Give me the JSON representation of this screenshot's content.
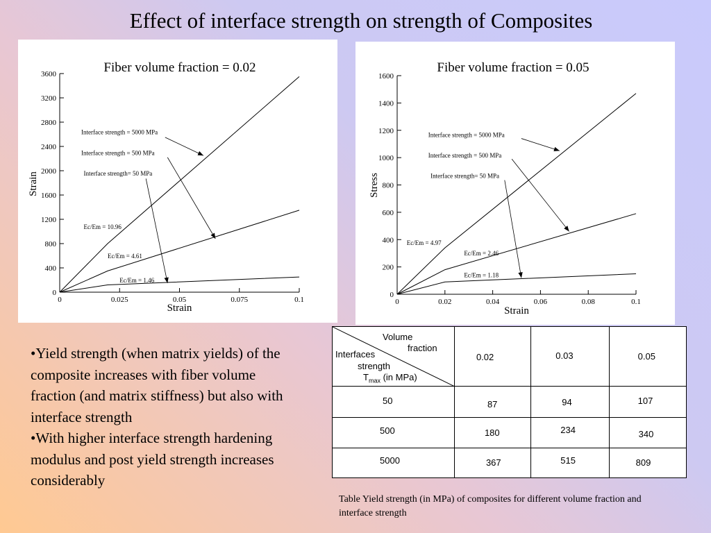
{
  "slide": {
    "title": "Effect of interface strength on strength of Composites"
  },
  "chart_data": [
    {
      "type": "line",
      "title": "Fiber volume fraction = 0.02",
      "xlabel": "Strain",
      "ylabel": "Strain",
      "xlim": [
        0,
        0.1
      ],
      "ylim": [
        0,
        3600
      ],
      "x_ticks": [
        "0",
        "0.025",
        "0.05",
        "0.075",
        "0.1"
      ],
      "y_ticks": [
        "0",
        "400",
        "800",
        "1200",
        "1600",
        "2000",
        "2400",
        "2800",
        "3200",
        "3600"
      ],
      "series": [
        {
          "x": [
            0,
            0.02,
            0.1
          ],
          "y": [
            0,
            800,
            3550
          ]
        },
        {
          "x": [
            0,
            0.02,
            0.1
          ],
          "y": [
            0,
            350,
            1350
          ]
        },
        {
          "x": [
            0,
            0.02,
            0.1
          ],
          "y": [
            0,
            120,
            250
          ]
        }
      ],
      "annotations": [
        {
          "text": "Interface strength = 5000 MPa",
          "x": 0.009,
          "y": 2600
        },
        {
          "text": "Interface strength = 500 MPa",
          "x": 0.009,
          "y": 2260
        },
        {
          "text": "Interface strength= 50 MPa",
          "x": 0.01,
          "y": 1920
        },
        {
          "text": "Ec/Em = 10.96",
          "x": 0.01,
          "y": 1040
        },
        {
          "text": "Ec/Em = 4.61",
          "x": 0.02,
          "y": 560
        },
        {
          "text": "Ec/Em = 1.46",
          "x": 0.025,
          "y": 160
        }
      ],
      "arrows": [
        {
          "from": [
            0.044,
            2550
          ],
          "to": [
            0.06,
            2250
          ]
        },
        {
          "from": [
            0.045,
            2220
          ],
          "to": [
            0.065,
            880
          ]
        },
        {
          "from": [
            0.036,
            1870
          ],
          "to": [
            0.045,
            150
          ]
        }
      ]
    },
    {
      "type": "line",
      "title": "Fiber volume fraction = 0.05",
      "xlabel": "Strain",
      "ylabel": "Stress",
      "xlim": [
        0,
        0.1
      ],
      "ylim": [
        0,
        1600
      ],
      "x_ticks": [
        "0",
        "0.02",
        "0.04",
        "0.06",
        "0.08",
        "0.1"
      ],
      "y_ticks": [
        "0",
        "200",
        "400",
        "600",
        "800",
        "1000",
        "1200",
        "1400",
        "1600"
      ],
      "series": [
        {
          "x": [
            0,
            0.02,
            0.1
          ],
          "y": [
            0,
            340,
            1470
          ]
        },
        {
          "x": [
            0,
            0.02,
            0.1
          ],
          "y": [
            0,
            180,
            590
          ]
        },
        {
          "x": [
            0,
            0.02,
            0.1
          ],
          "y": [
            0,
            90,
            150
          ]
        }
      ],
      "annotations": [
        {
          "text": "Interface strength = 5000 MPa",
          "x": 0.013,
          "y": 1150
        },
        {
          "text": "Interface strength = 500 MPa",
          "x": 0.013,
          "y": 1000
        },
        {
          "text": "Interface strength= 50 MPa",
          "x": 0.014,
          "y": 850
        },
        {
          "text": "Ec/Em = 4.97",
          "x": 0.004,
          "y": 360
        },
        {
          "text": "Ec/Em = 2.46",
          "x": 0.028,
          "y": 285
        },
        {
          "text": "Ec/Em = 1.18",
          "x": 0.028,
          "y": 125
        }
      ],
      "arrows": [
        {
          "from": [
            0.052,
            1140
          ],
          "to": [
            0.068,
            1050
          ]
        },
        {
          "from": [
            0.048,
            990
          ],
          "to": [
            0.072,
            460
          ]
        },
        {
          "from": [
            0.045,
            835
          ],
          "to": [
            0.052,
            120
          ]
        }
      ]
    }
  ],
  "bullets": [
    "•Yield strength (when matrix yields) of the composite increases with fiber volume fraction (and matrix stiffness) but also with interface strength",
    "•With higher interface strength hardening modulus and post yield strength increases considerably"
  ],
  "table": {
    "header_volume": "Volume",
    "header_fraction": "fraction",
    "header_interfaces": "Interfaces",
    "header_strength": "strength",
    "header_tmax_base": "T",
    "header_tmax_sub": "max",
    "header_tmax_unit": " (in MPa)",
    "columns": [
      "0.02",
      "0.03",
      "0.05"
    ],
    "rows": [
      {
        "label": "50",
        "values": [
          "87",
          "94",
          "107"
        ]
      },
      {
        "label": "500",
        "values": [
          "180",
          "234",
          "340"
        ]
      },
      {
        "label": "5000",
        "values": [
          "367",
          "515",
          "809"
        ]
      }
    ]
  },
  "caption": "Table  Yield strength (in MPa) of composites for different volume fraction and interface strength"
}
